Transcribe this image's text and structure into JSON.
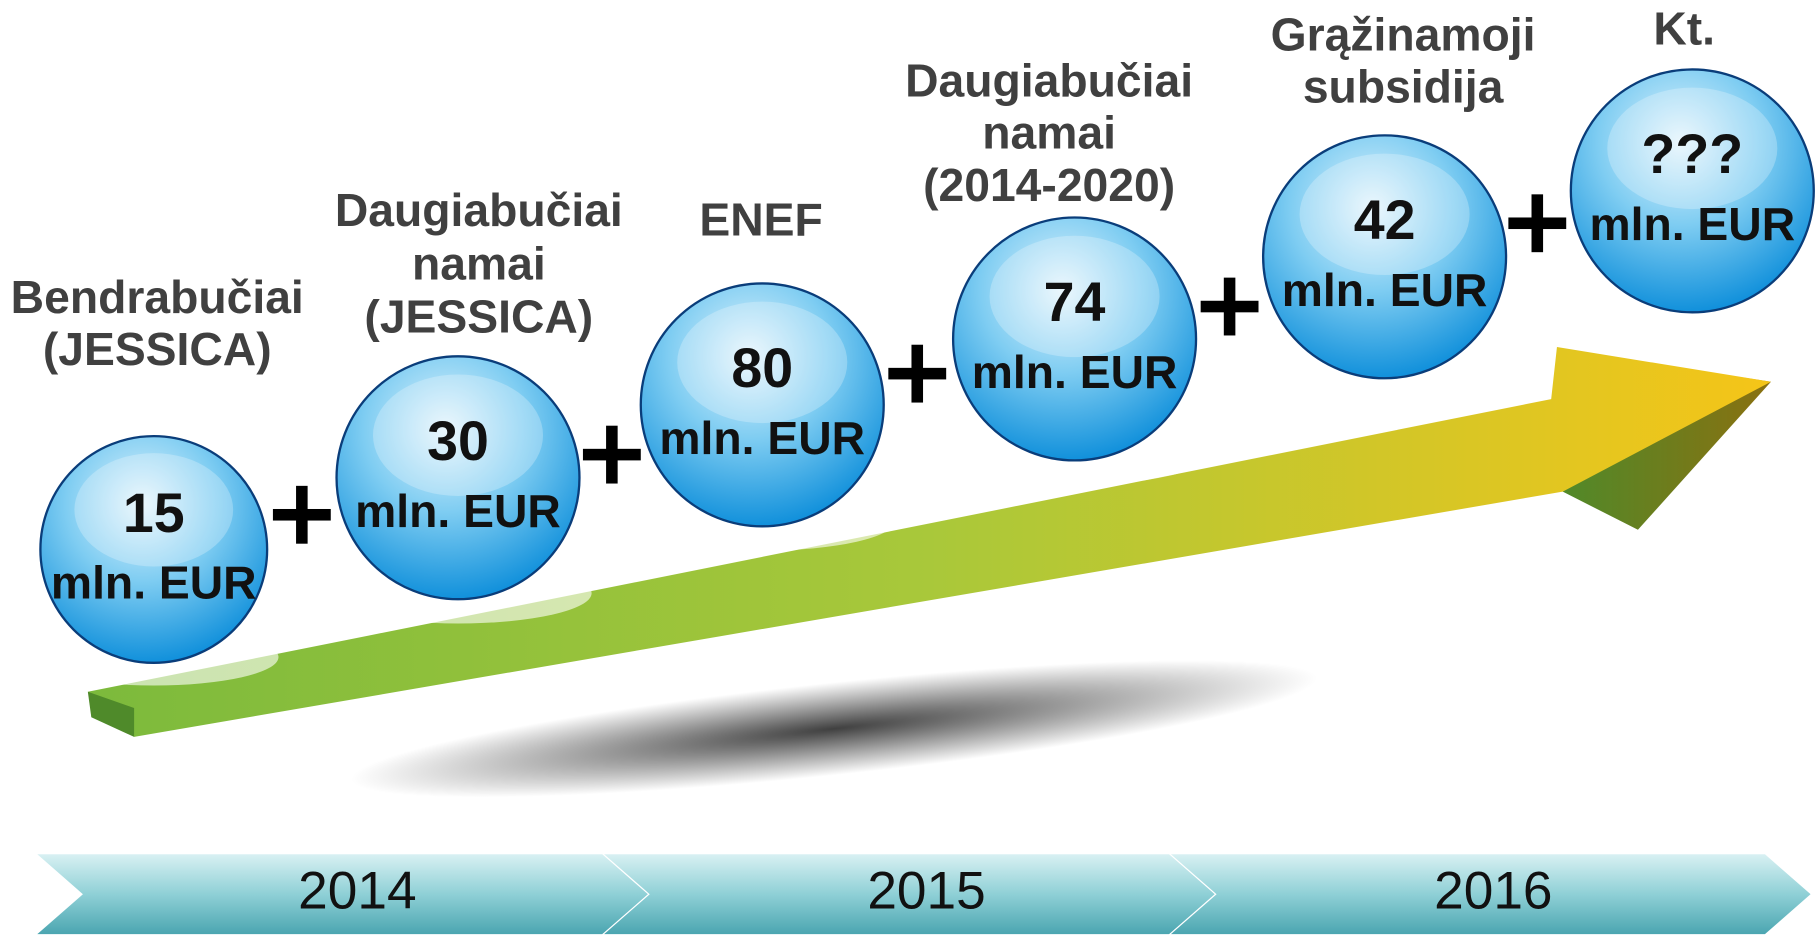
{
  "nodes": [
    {
      "label": [
        "Bendrabučiai",
        "(JESSICA)"
      ],
      "amount": "15",
      "unit": "mln. EUR"
    },
    {
      "label": [
        "Daugiabučiai",
        "namai",
        "(JESSICA)"
      ],
      "amount": "30",
      "unit": "mln. EUR"
    },
    {
      "label": [
        "ENEF"
      ],
      "amount": "80",
      "unit": "mln. EUR"
    },
    {
      "label": [
        "Daugiabučiai",
        "namai",
        "(2014-2020)"
      ],
      "amount": "74",
      "unit": "mln. EUR"
    },
    {
      "label": [
        "Grąžinamoji",
        "subsidija"
      ],
      "amount": "42",
      "unit": "mln. EUR"
    },
    {
      "label": [
        "Kt."
      ],
      "amount": "???",
      "unit": "mln. EUR"
    }
  ],
  "timeline": [
    "2014",
    "2015",
    "2016"
  ]
}
